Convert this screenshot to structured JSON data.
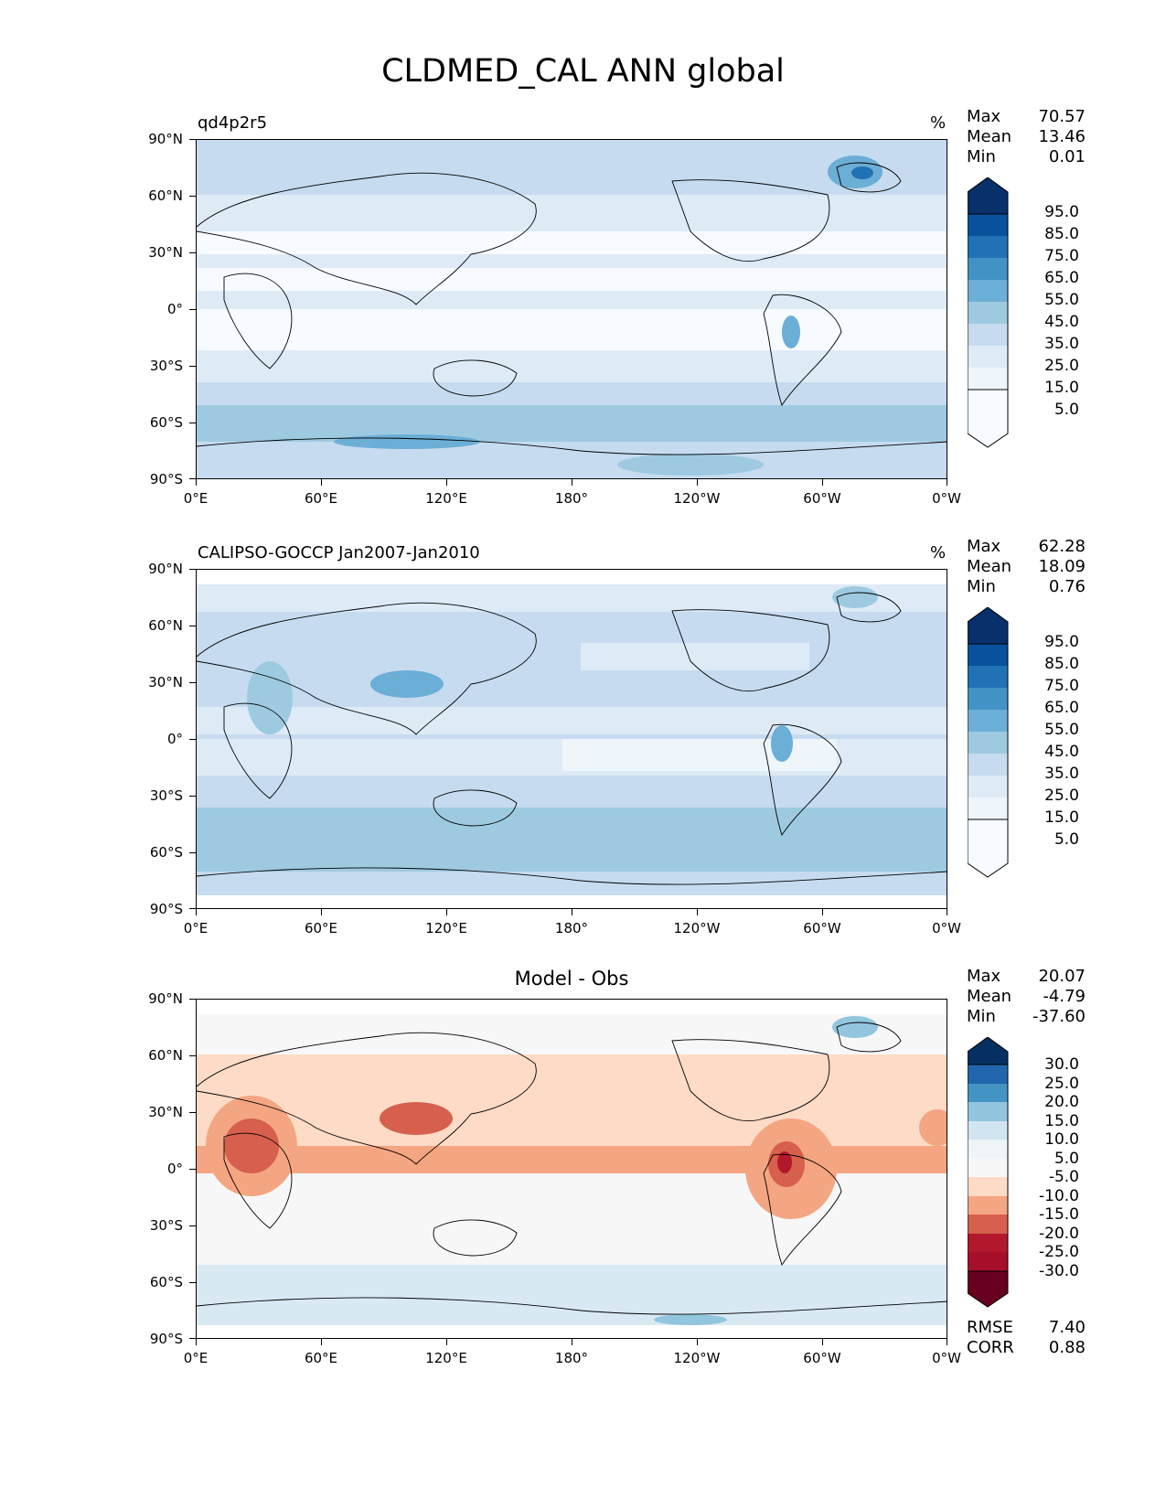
{
  "title": "CLDMED_CAL ANN global",
  "axes": {
    "lat_labels": [
      "90°N",
      "60°N",
      "30°N",
      "0°",
      "30°S",
      "60°S",
      "90°S"
    ],
    "lon_labels": [
      "0°E",
      "60°E",
      "120°E",
      "180°",
      "120°W",
      "60°W",
      "0°W"
    ]
  },
  "panels": [
    {
      "subtitle": "qd4p2r5",
      "units": "%",
      "stats": {
        "max_label": "Max",
        "max": "70.57",
        "mean_label": "Mean",
        "mean": "13.46",
        "min_label": "Min",
        "min": "0.01"
      },
      "colorbar_labels": [
        "95.0",
        "85.0",
        "75.0",
        "65.0",
        "55.0",
        "45.0",
        "35.0",
        "25.0",
        "15.0",
        "5.0"
      ],
      "colors": [
        "#08306b",
        "#08519c",
        "#2171b5",
        "#4292c6",
        "#6baed6",
        "#9ecae1",
        "#c6dbef",
        "#deebf7",
        "#f7fbff"
      ]
    },
    {
      "subtitle": "CALIPSO-GOCCP Jan2007-Jan2010",
      "units": "%",
      "stats": {
        "max_label": "Max",
        "max": "62.28",
        "mean_label": "Mean",
        "mean": "18.09",
        "min_label": "Min",
        "min": "0.76"
      },
      "colorbar_labels": [
        "95.0",
        "85.0",
        "75.0",
        "65.0",
        "55.0",
        "45.0",
        "35.0",
        "25.0",
        "15.0",
        "5.0"
      ],
      "colors": [
        "#08306b",
        "#08519c",
        "#2171b5",
        "#4292c6",
        "#6baed6",
        "#9ecae1",
        "#c6dbef",
        "#deebf7",
        "#f7fbff"
      ]
    },
    {
      "subtitle": "Model - Obs",
      "units": "",
      "stats": {
        "max_label": "Max",
        "max": "20.07",
        "mean_label": "Mean",
        "mean": "-4.79",
        "min_label": "Min",
        "min": "-37.60"
      },
      "colorbar_labels": [
        "30.0",
        "25.0",
        "20.0",
        "15.0",
        "10.0",
        "5.0",
        "-5.0",
        "-10.0",
        "-15.0",
        "-20.0",
        "-25.0",
        "-30.0"
      ],
      "colors": [
        "#053061",
        "#2166ac",
        "#4393c3",
        "#92c5de",
        "#d1e5f0",
        "#f7f7f7",
        "#fddbc7",
        "#f4a582",
        "#d6604d",
        "#b2182b",
        "#67001f"
      ],
      "metrics": {
        "rmse_label": "RMSE",
        "rmse": "7.40",
        "corr_label": "CORR",
        "corr": "0.88"
      }
    }
  ]
}
